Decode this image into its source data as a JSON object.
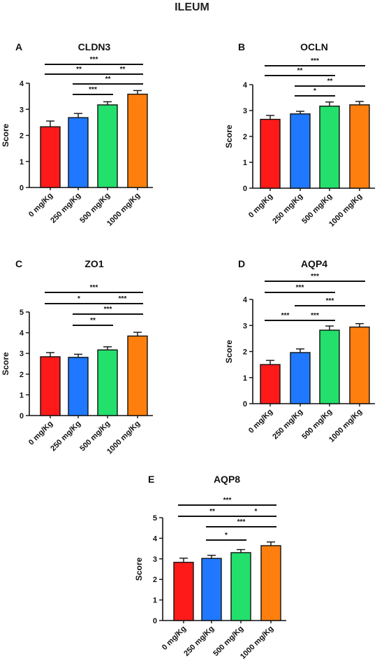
{
  "figure": {
    "title": "ILEUM"
  },
  "colors": {
    "0 mg/Kg": "#ff1a1a",
    "250 mg/Kg": "#1f78ff",
    "500 mg/Kg": "#22e06b",
    "1000 mg/Kg": "#ff7f0e"
  },
  "chart_data": [
    {
      "panel": "A",
      "type": "bar",
      "title": "CLDN3",
      "xlabel": "",
      "ylabel": "Score",
      "ylim": [
        0,
        4
      ],
      "yticks": [
        0,
        1,
        2,
        3,
        4
      ],
      "categories": [
        "0 mg/Kg",
        "250 mg/Kg",
        "500 mg/Kg",
        "1000 mg/Kg"
      ],
      "values": [
        2.33,
        2.68,
        3.17,
        3.58
      ],
      "errors": [
        0.22,
        0.16,
        0.12,
        0.14
      ],
      "significance": [
        {
          "from": 0,
          "to": 3,
          "label": "***"
        },
        {
          "from": 0,
          "to": 2,
          "label": "**"
        },
        {
          "from": 2,
          "to": 3,
          "label": "**"
        },
        {
          "from": 1,
          "to": 3,
          "label": "**"
        },
        {
          "from": 1,
          "to": 2,
          "label": "***"
        }
      ]
    },
    {
      "panel": "B",
      "type": "bar",
      "title": "OCLN",
      "xlabel": "",
      "ylabel": "Score",
      "ylim": [
        0,
        4
      ],
      "yticks": [
        0,
        1,
        2,
        3,
        4
      ],
      "categories": [
        "0 mg/Kg",
        "250 mg/Kg",
        "500 mg/Kg",
        "1000 mg/Kg"
      ],
      "values": [
        2.66,
        2.87,
        3.17,
        3.22
      ],
      "errors": [
        0.15,
        0.1,
        0.16,
        0.13
      ],
      "significance": [
        {
          "from": 0,
          "to": 3,
          "label": "***"
        },
        {
          "from": 0,
          "to": 2,
          "label": "**"
        },
        {
          "from": 1,
          "to": 3,
          "label": "**"
        },
        {
          "from": 1,
          "to": 2,
          "label": "*"
        }
      ]
    },
    {
      "panel": "C",
      "type": "bar",
      "title": "ZO1",
      "xlabel": "",
      "ylabel": "Score",
      "ylim": [
        0,
        5
      ],
      "yticks": [
        0,
        1,
        2,
        3,
        4,
        5
      ],
      "categories": [
        "0 mg/Kg",
        "250 mg/Kg",
        "500 mg/Kg",
        "1000 mg/Kg"
      ],
      "values": [
        2.84,
        2.81,
        3.17,
        3.84
      ],
      "errors": [
        0.2,
        0.15,
        0.15,
        0.18
      ],
      "significance": [
        {
          "from": 0,
          "to": 3,
          "label": "***"
        },
        {
          "from": 0,
          "to": 2,
          "label": "*"
        },
        {
          "from": 2,
          "to": 3,
          "label": "***"
        },
        {
          "from": 1,
          "to": 3,
          "label": "***"
        },
        {
          "from": 1,
          "to": 2,
          "label": "**"
        }
      ]
    },
    {
      "panel": "D",
      "type": "bar",
      "title": "AQP4",
      "xlabel": "",
      "ylabel": "Score",
      "ylim": [
        0,
        4
      ],
      "yticks": [
        0,
        1,
        2,
        3,
        4
      ],
      "categories": [
        "0 mg/Kg",
        "250 mg/Kg",
        "500 mg/Kg",
        "1000 mg/Kg"
      ],
      "values": [
        1.5,
        1.96,
        2.82,
        2.94
      ],
      "errors": [
        0.16,
        0.14,
        0.16,
        0.13
      ],
      "significance": [
        {
          "from": 0,
          "to": 3,
          "label": "***"
        },
        {
          "from": 0,
          "to": 2,
          "label": "***"
        },
        {
          "from": 1,
          "to": 3,
          "label": "***"
        },
        {
          "from": 0,
          "to": 1,
          "label": "***"
        },
        {
          "from": 1,
          "to": 2,
          "label": "***"
        }
      ]
    },
    {
      "panel": "E",
      "type": "bar",
      "title": "AQP8",
      "xlabel": "",
      "ylabel": "Score",
      "ylim": [
        0,
        5
      ],
      "yticks": [
        0,
        1,
        2,
        3,
        4,
        5
      ],
      "categories": [
        "0 mg/Kg",
        "250 mg/Kg",
        "500 mg/Kg",
        "1000 mg/Kg"
      ],
      "values": [
        2.83,
        3.02,
        3.3,
        3.64
      ],
      "errors": [
        0.2,
        0.15,
        0.15,
        0.18
      ],
      "significance": [
        {
          "from": 0,
          "to": 3,
          "label": "***"
        },
        {
          "from": 0,
          "to": 2,
          "label": "**"
        },
        {
          "from": 2,
          "to": 3,
          "label": "*"
        },
        {
          "from": 1,
          "to": 3,
          "label": "***"
        },
        {
          "from": 1,
          "to": 2,
          "label": "*"
        }
      ]
    }
  ]
}
